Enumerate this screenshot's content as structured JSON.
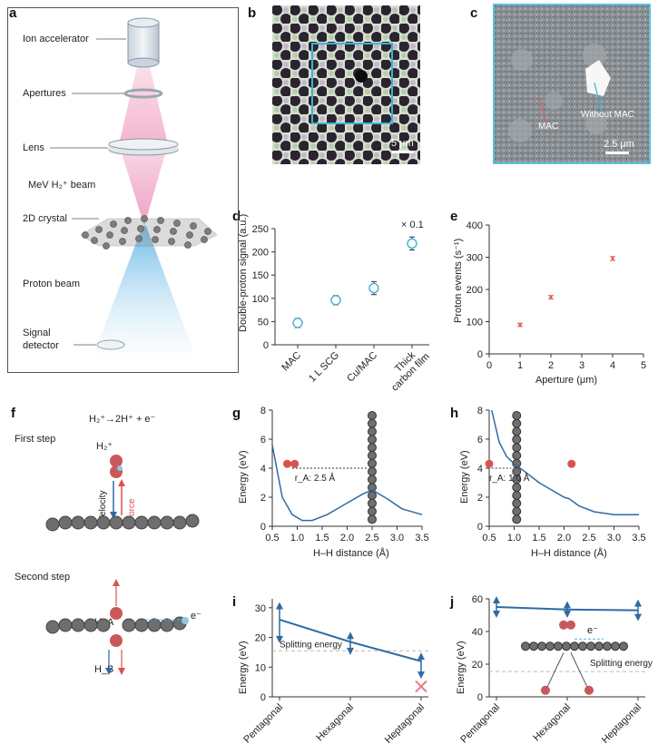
{
  "panels": {
    "a": "a",
    "b": "b",
    "c": "c",
    "d": "d",
    "e": "e",
    "f": "f",
    "g": "g",
    "h": "h",
    "i": "i",
    "j": "j"
  },
  "panel_a": {
    "ion_accelerator": "Ion accelerator",
    "apertures": "Apertures",
    "lens": "Lens",
    "beam": "MeV H₂⁺ beam",
    "crystal": "2D crystal",
    "proton_beam": "Proton beam",
    "signal": "Signal",
    "detector": "detector"
  },
  "panel_b": {
    "scale": "5 μm"
  },
  "panel_c": {
    "mac": "MAC",
    "without_mac": "Without MAC",
    "scale": "2.5 μm"
  },
  "panel_f": {
    "reaction": "H₂⁺→2H⁺ + e⁻",
    "first_step": "First step",
    "second_step": "Second step",
    "h2": "H₂⁺",
    "velocity": "Velocity",
    "force": "Force",
    "ha": "H_A",
    "hb": "H_B",
    "electron": "e⁻"
  },
  "panel_j": {
    "electron": "e⁻",
    "splitting": "Splitting energy"
  },
  "chart_data": [
    {
      "id": "d",
      "type": "scatter",
      "categories": [
        "MAC",
        "1 L SCG",
        "Cu/MAC",
        "Thick carbon film"
      ],
      "values": [
        47,
        96,
        122,
        218
      ],
      "errors": [
        10,
        10,
        14,
        14
      ],
      "ylabel": "Double-proton signal (a.u.)",
      "ylim": [
        0,
        250
      ],
      "yticks": [
        "0",
        "50",
        "100",
        "150",
        "200",
        "250"
      ],
      "annotation": "× 0.1"
    },
    {
      "id": "e",
      "type": "scatter",
      "x": [
        1,
        2,
        4
      ],
      "values": [
        90,
        176,
        296
      ],
      "errors": [
        5,
        5,
        6
      ],
      "xlabel": "Aperture (μm)",
      "ylabel": "Proton events (s⁻¹)",
      "xlim": [
        0,
        5
      ],
      "ylim": [
        0,
        400
      ],
      "xticks": [
        "0",
        "1",
        "2",
        "3",
        "4",
        "5"
      ],
      "yticks": [
        "0",
        "100",
        "200",
        "300",
        "400"
      ]
    },
    {
      "id": "g",
      "type": "line",
      "x": [
        0.5,
        0.7,
        0.9,
        1.1,
        1.3,
        1.6,
        2.0,
        2.3,
        2.5,
        2.8,
        3.1,
        3.5
      ],
      "values": [
        5.6,
        2.0,
        0.8,
        0.4,
        0.4,
        0.8,
        1.6,
        2.2,
        2.5,
        1.9,
        1.2,
        0.8
      ],
      "xlabel": "H–H distance (Å)",
      "ylabel": "Energy (eV)",
      "xlim": [
        0.5,
        3.5
      ],
      "ylim": [
        0,
        8
      ],
      "xticks": [
        "0.5",
        "1.0",
        "1.5",
        "2.0",
        "2.5",
        "3.0",
        "3.5"
      ],
      "yticks": [
        "0",
        "2",
        "4",
        "6",
        "8"
      ],
      "annotation": "r_A: 2.5 Å"
    },
    {
      "id": "h",
      "type": "line",
      "x": [
        0.55,
        0.7,
        0.85,
        1.0,
        1.2,
        1.5,
        1.8,
        2.0,
        2.1,
        2.3,
        2.6,
        3.0,
        3.5
      ],
      "values": [
        8.0,
        5.8,
        4.8,
        4.3,
        3.8,
        3.0,
        2.4,
        2.0,
        1.9,
        1.4,
        1.0,
        0.8,
        0.8
      ],
      "xlabel": "H–H distance (Å)",
      "ylabel": "Energy (eV)",
      "xlim": [
        0.5,
        3.5
      ],
      "ylim": [
        0,
        8
      ],
      "xticks": [
        "0.5",
        "1.0",
        "1.5",
        "2.0",
        "2.5",
        "3.0",
        "3.5"
      ],
      "yticks": [
        "0",
        "2",
        "4",
        "6",
        "8"
      ],
      "annotation": "r_A: 1.0 Å"
    },
    {
      "id": "i",
      "type": "line",
      "categories": [
        "Pentagonal",
        "Hexagonal",
        "Heptagonal"
      ],
      "values": [
        26,
        18.5,
        12
      ],
      "ranges": [
        [
          19,
          31
        ],
        [
          15,
          21
        ],
        [
          7,
          14
        ]
      ],
      "ylabel": "Energy (eV)",
      "ylim": [
        0,
        33
      ],
      "yticks": [
        "0",
        "10",
        "20",
        "30"
      ],
      "splitting_energy": 15.5,
      "splitting_label": "Splitting energy"
    },
    {
      "id": "j",
      "type": "line",
      "categories": [
        "Pentagonal",
        "Hexagonal",
        "Heptagonal"
      ],
      "values": [
        55,
        53.5,
        53
      ],
      "ranges": [
        [
          50,
          60
        ],
        [
          50,
          57
        ],
        [
          48,
          58
        ]
      ],
      "ylabel": "Energy (eV)",
      "ylim": [
        0,
        60
      ],
      "yticks": [
        "0",
        "20",
        "40",
        "60"
      ],
      "splitting_energy": 15.5
    }
  ],
  "colors": {
    "blue": "#2f6aa3",
    "red": "#d9534f",
    "cyan": "#4fb3d9",
    "pink": "#f3a7c7",
    "grey": "#6b6b6b"
  }
}
